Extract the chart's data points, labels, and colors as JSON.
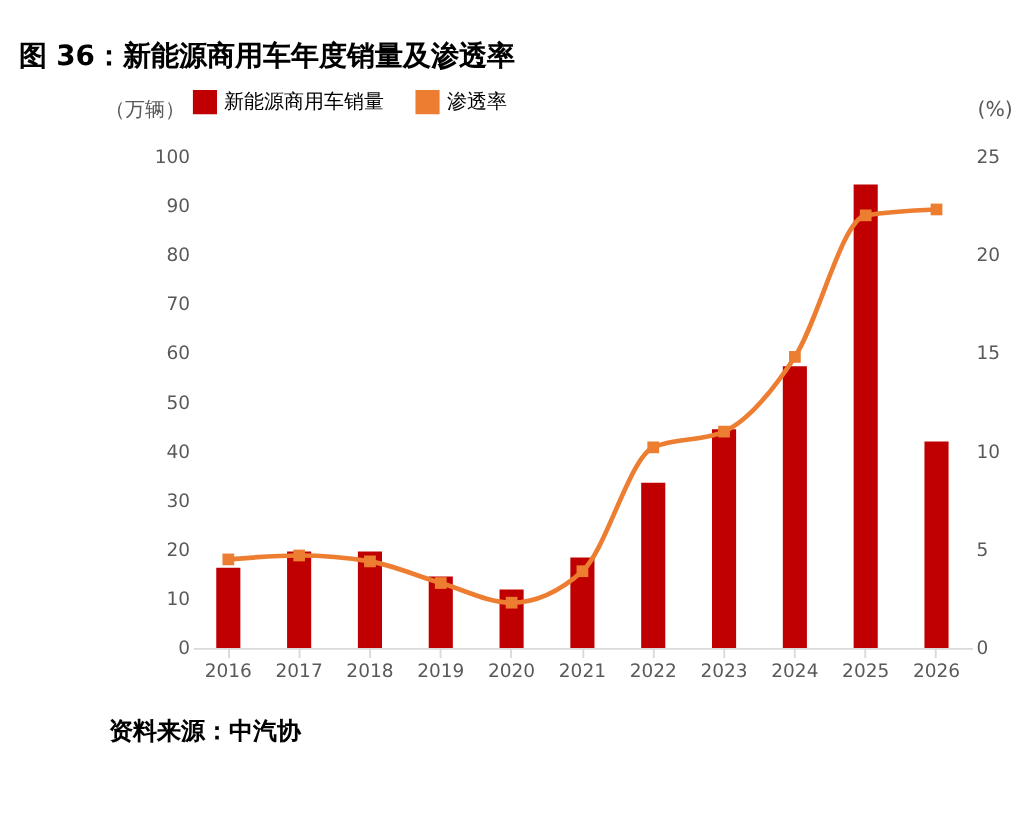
{
  "chart_data": {
    "type": "bar",
    "title": "图 36：新能源商用车年度销量及渗透率",
    "ylabel": "（万辆）",
    "y2label": "(%)",
    "categories": [
      "2016",
      "2017",
      "2018",
      "2019",
      "2020",
      "2021",
      "2022",
      "2023",
      "2024",
      "2025",
      "2026"
    ],
    "series": [
      {
        "name": "新能源商用车销量",
        "color": "#c00000",
        "values": [
          16.3,
          19.6,
          19.6,
          14.5,
          11.9,
          18.4,
          33.6,
          44.5,
          57.3,
          94.3,
          42
        ]
      },
      {
        "name": "渗透率",
        "type": "line",
        "axis": "y2",
        "color": "#ed7d31",
        "marker": "square",
        "values": [
          4.5,
          4.7,
          4.4,
          3.3,
          2.3,
          3.9,
          10.2,
          11.0,
          14.8,
          22.0,
          22.3
        ]
      }
    ],
    "ylim": [
      0,
      100
    ],
    "yticks": [
      0,
      10,
      20,
      30,
      40,
      50,
      60,
      70,
      80,
      90,
      100
    ],
    "y2lim": [
      0,
      25
    ],
    "y2ticks": [
      0,
      5,
      10,
      15,
      20,
      25
    ],
    "legend": "top",
    "grid": false,
    "annotations": [
      "资料来源：中汽协"
    ]
  }
}
